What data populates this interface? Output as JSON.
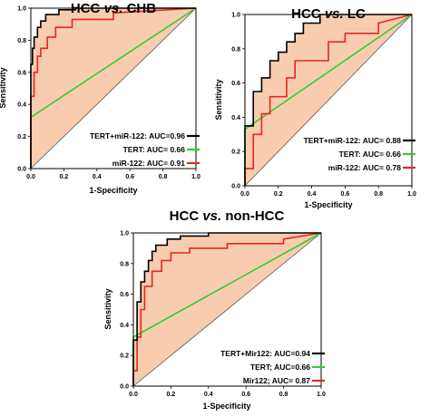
{
  "chart_data": [
    {
      "type": "line",
      "title_parts": {
        "left": "HCC",
        "vs": "vs.",
        "right": "CHB"
      },
      "xlabel": "1-Specificity",
      "ylabel": "Sensitivity",
      "xlim": [
        0,
        1
      ],
      "ylim": [
        0,
        1
      ],
      "xticks": [
        "0.0",
        "0.2",
        "0.4",
        "0.6",
        "0.8",
        "1.0"
      ],
      "yticks": [
        "0.0",
        "0.2",
        "0.4",
        "0.6",
        "0.8",
        "1.0"
      ],
      "grid": false,
      "legend_position": "bottom-right",
      "reference_line": {
        "x": [
          0,
          1
        ],
        "y": [
          0,
          1
        ]
      },
      "series": [
        {
          "name": "TERT+miR-122: AUC=0.96",
          "color": "#000000",
          "x": [
            0,
            0,
            0.01,
            0.01,
            0.02,
            0.02,
            0.04,
            0.04,
            0.06,
            0.06,
            0.09,
            0.09,
            0.17,
            0.17,
            0.27,
            0.27,
            1.0
          ],
          "y": [
            0,
            0.65,
            0.65,
            0.75,
            0.75,
            0.82,
            0.82,
            0.88,
            0.88,
            0.92,
            0.92,
            0.96,
            0.96,
            0.99,
            0.99,
            1.0,
            1.0
          ]
        },
        {
          "name": "TERT: AUC= 0.66",
          "color": "#33cc33",
          "x": [
            0,
            0,
            1.0
          ],
          "y": [
            0,
            0.32,
            1.0
          ]
        },
        {
          "name": "miR-122: AUC= 0.91",
          "color": "#e8261f",
          "x": [
            0,
            0,
            0.02,
            0.02,
            0.04,
            0.04,
            0.06,
            0.06,
            0.1,
            0.1,
            0.15,
            0.15,
            0.25,
            0.25,
            0.5,
            0.5,
            1.0
          ],
          "y": [
            0,
            0.45,
            0.45,
            0.6,
            0.6,
            0.7,
            0.7,
            0.75,
            0.75,
            0.82,
            0.82,
            0.88,
            0.88,
            0.93,
            0.93,
            0.97,
            1.0
          ]
        }
      ]
    },
    {
      "type": "line",
      "title_parts": {
        "left": "HCC",
        "vs": "vs.",
        "right": "LC"
      },
      "xlabel": "1-Specificity",
      "ylabel": "Sensitivity",
      "xlim": [
        0,
        1
      ],
      "ylim": [
        0,
        1
      ],
      "xticks": [
        "0.0",
        "0.2",
        "0.4",
        "0.6",
        "0.8",
        "1.0"
      ],
      "yticks": [
        "0.0",
        "0.2",
        "0.4",
        "0.6",
        "0.8",
        "1.0"
      ],
      "grid": false,
      "legend_position": "bottom-right",
      "reference_line": {
        "x": [
          0,
          1
        ],
        "y": [
          0,
          1
        ]
      },
      "series": [
        {
          "name": "TERT+miR-122: AUC= 0.88",
          "color": "#000000",
          "x": [
            0,
            0,
            0.05,
            0.05,
            0.1,
            0.1,
            0.15,
            0.15,
            0.2,
            0.2,
            0.25,
            0.25,
            0.3,
            0.3,
            0.35,
            0.35,
            0.45,
            0.45,
            1.0
          ],
          "y": [
            0,
            0.35,
            0.35,
            0.55,
            0.55,
            0.63,
            0.63,
            0.73,
            0.73,
            0.78,
            0.78,
            0.84,
            0.84,
            0.89,
            0.89,
            0.95,
            0.95,
            1.0,
            1.0
          ]
        },
        {
          "name": "TERT: AUC= 0.66",
          "color": "#33cc33",
          "x": [
            0,
            0,
            1.0
          ],
          "y": [
            0,
            0.33,
            1.0
          ]
        },
        {
          "name": "miR-122: AUC= 0.78",
          "color": "#e8261f",
          "x": [
            0,
            0,
            0.05,
            0.05,
            0.1,
            0.1,
            0.15,
            0.15,
            0.25,
            0.25,
            0.3,
            0.3,
            0.5,
            0.5,
            0.6,
            0.6,
            0.8,
            0.8,
            1.0
          ],
          "y": [
            0,
            0.1,
            0.1,
            0.3,
            0.3,
            0.42,
            0.42,
            0.52,
            0.52,
            0.63,
            0.63,
            0.73,
            0.73,
            0.84,
            0.84,
            0.89,
            0.89,
            0.95,
            1.0
          ]
        }
      ]
    },
    {
      "type": "line",
      "title_parts": {
        "left": "HCC",
        "vs": "vs.",
        "right": "non-HCC"
      },
      "xlabel": "1-Specificity",
      "ylabel": "Sensitivity",
      "xlim": [
        0,
        1
      ],
      "ylim": [
        0,
        1
      ],
      "xticks": [
        "0.0",
        "0.2",
        "0.4",
        "0.6",
        "0.8",
        "1.0"
      ],
      "yticks": [
        "0.0",
        "0.2",
        "0.4",
        "0.6",
        "0.8",
        "1.0"
      ],
      "grid": false,
      "legend_position": "bottom-right",
      "reference_line": {
        "x": [
          0,
          1
        ],
        "y": [
          0,
          1
        ]
      },
      "series": [
        {
          "name": "TERT+Mir122: AUC=0.94",
          "color": "#000000",
          "x": [
            0,
            0,
            0.02,
            0.02,
            0.04,
            0.04,
            0.06,
            0.06,
            0.08,
            0.08,
            0.1,
            0.1,
            0.12,
            0.12,
            0.18,
            0.18,
            0.25,
            0.25,
            0.4,
            0.4,
            1.0
          ],
          "y": [
            0,
            0.3,
            0.3,
            0.55,
            0.55,
            0.68,
            0.68,
            0.75,
            0.75,
            0.82,
            0.82,
            0.88,
            0.88,
            0.92,
            0.92,
            0.96,
            0.96,
            0.98,
            0.98,
            1.0,
            1.0
          ]
        },
        {
          "name": "TERT; AUC=0.66",
          "color": "#33cc33",
          "x": [
            0,
            0,
            1.0
          ],
          "y": [
            0,
            0.32,
            1.0
          ]
        },
        {
          "name": "Mir122; AUC= 0.87",
          "color": "#e8261f",
          "x": [
            0,
            0,
            0.02,
            0.02,
            0.04,
            0.04,
            0.06,
            0.06,
            0.1,
            0.1,
            0.15,
            0.15,
            0.2,
            0.2,
            0.3,
            0.3,
            0.5,
            0.5,
            0.8,
            0.8,
            1.0
          ],
          "y": [
            0,
            0.1,
            0.1,
            0.32,
            0.32,
            0.5,
            0.5,
            0.65,
            0.65,
            0.75,
            0.75,
            0.82,
            0.82,
            0.87,
            0.87,
            0.9,
            0.9,
            0.93,
            0.93,
            0.96,
            1.0
          ]
        }
      ]
    }
  ]
}
